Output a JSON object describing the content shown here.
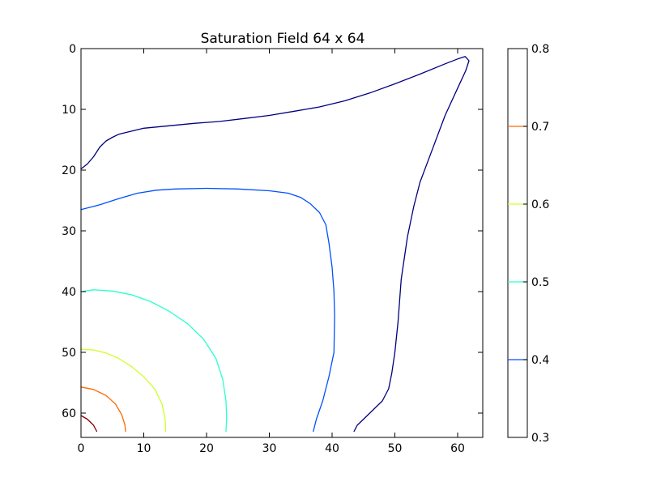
{
  "chart_data": {
    "type": "contour",
    "title": "Saturation Field 64 x 64",
    "xlabel": "",
    "ylabel": "",
    "xlim": [
      0,
      64
    ],
    "ylim": [
      64,
      0
    ],
    "x_ticks": [
      0,
      10,
      20,
      30,
      40,
      50,
      60
    ],
    "y_ticks": [
      0,
      10,
      20,
      30,
      40,
      50,
      60
    ],
    "grid": false,
    "colorbar": {
      "range": [
        0.3,
        0.8
      ],
      "ticks": [
        "0.3",
        "0.4",
        "0.5",
        "0.6",
        "0.7",
        "0.8"
      ],
      "levels": [
        {
          "value": 0.4,
          "color": "#0050ff"
        },
        {
          "value": 0.5,
          "color": "#29ffce"
        },
        {
          "value": 0.6,
          "color": "#ceff29"
        },
        {
          "value": 0.7,
          "color": "#ff6800"
        }
      ]
    },
    "series": [
      {
        "level": 0.3,
        "color": "#00007f",
        "points": [
          [
            0,
            19.8
          ],
          [
            1,
            19
          ],
          [
            2,
            17.8
          ],
          [
            3,
            16.2
          ],
          [
            4,
            15.2
          ],
          [
            5,
            14.6
          ],
          [
            6,
            14.1
          ],
          [
            8,
            13.6
          ],
          [
            10,
            13.1
          ],
          [
            14,
            12.7
          ],
          [
            18,
            12.3
          ],
          [
            22,
            12
          ],
          [
            26,
            11.5
          ],
          [
            30,
            11
          ],
          [
            34,
            10.3
          ],
          [
            38,
            9.6
          ],
          [
            42,
            8.6
          ],
          [
            46,
            7.3
          ],
          [
            50,
            5.8
          ],
          [
            54,
            4.2
          ],
          [
            58,
            2.5
          ],
          [
            60,
            1.7
          ],
          [
            61.2,
            1.3
          ],
          [
            61.8,
            2
          ],
          [
            61.3,
            3.6
          ],
          [
            60,
            6.5
          ],
          [
            58,
            11
          ],
          [
            56,
            16.5
          ],
          [
            54,
            22
          ],
          [
            53,
            26
          ],
          [
            52,
            31
          ],
          [
            51,
            38
          ],
          [
            50.5,
            45
          ],
          [
            50,
            50
          ],
          [
            49.5,
            53.5
          ],
          [
            49,
            56
          ],
          [
            48,
            58
          ],
          [
            46,
            60
          ],
          [
            45,
            61
          ],
          [
            44,
            62
          ],
          [
            43.5,
            63
          ]
        ]
      },
      {
        "level": 0.4,
        "color": "#0050ff",
        "points": [
          [
            0,
            26.5
          ],
          [
            3,
            25.7
          ],
          [
            6,
            24.7
          ],
          [
            9,
            23.8
          ],
          [
            12,
            23.3
          ],
          [
            15,
            23.1
          ],
          [
            20,
            23
          ],
          [
            25,
            23.1
          ],
          [
            30,
            23.4
          ],
          [
            33,
            23.8
          ],
          [
            35,
            24.5
          ],
          [
            36.5,
            25.5
          ],
          [
            38,
            27
          ],
          [
            39,
            29
          ],
          [
            39.5,
            32
          ],
          [
            40,
            36
          ],
          [
            40.3,
            40
          ],
          [
            40.4,
            44
          ],
          [
            40.3,
            50
          ],
          [
            39.5,
            54
          ],
          [
            38.5,
            58
          ],
          [
            37.5,
            61
          ],
          [
            37,
            63
          ]
        ]
      },
      {
        "level": 0.5,
        "color": "#29ffce",
        "points": [
          [
            0,
            40
          ],
          [
            2,
            39.7
          ],
          [
            5,
            39.9
          ],
          [
            8,
            40.5
          ],
          [
            11,
            41.6
          ],
          [
            14,
            43.2
          ],
          [
            17,
            45.3
          ],
          [
            19.5,
            47.8
          ],
          [
            21.5,
            51
          ],
          [
            22.6,
            54.5
          ],
          [
            23.1,
            58
          ],
          [
            23.2,
            61
          ],
          [
            23.1,
            63
          ]
        ]
      },
      {
        "level": 0.6,
        "color": "#ceff29",
        "points": [
          [
            0,
            49.5
          ],
          [
            2,
            49.6
          ],
          [
            4,
            50.1
          ],
          [
            6,
            51
          ],
          [
            8,
            52.3
          ],
          [
            10,
            54
          ],
          [
            11.8,
            56.1
          ],
          [
            12.9,
            58.5
          ],
          [
            13.4,
            61
          ],
          [
            13.5,
            63
          ]
        ]
      },
      {
        "level": 0.7,
        "color": "#ff6800",
        "points": [
          [
            0,
            55.7
          ],
          [
            2,
            56.1
          ],
          [
            4,
            57.1
          ],
          [
            5.5,
            58.5
          ],
          [
            6.5,
            60.3
          ],
          [
            7,
            62
          ],
          [
            7.1,
            63
          ]
        ]
      },
      {
        "level": 0.8,
        "color": "#800000",
        "points": [
          [
            0,
            60.4
          ],
          [
            1,
            61
          ],
          [
            2,
            62
          ],
          [
            2.5,
            63
          ]
        ]
      }
    ]
  }
}
